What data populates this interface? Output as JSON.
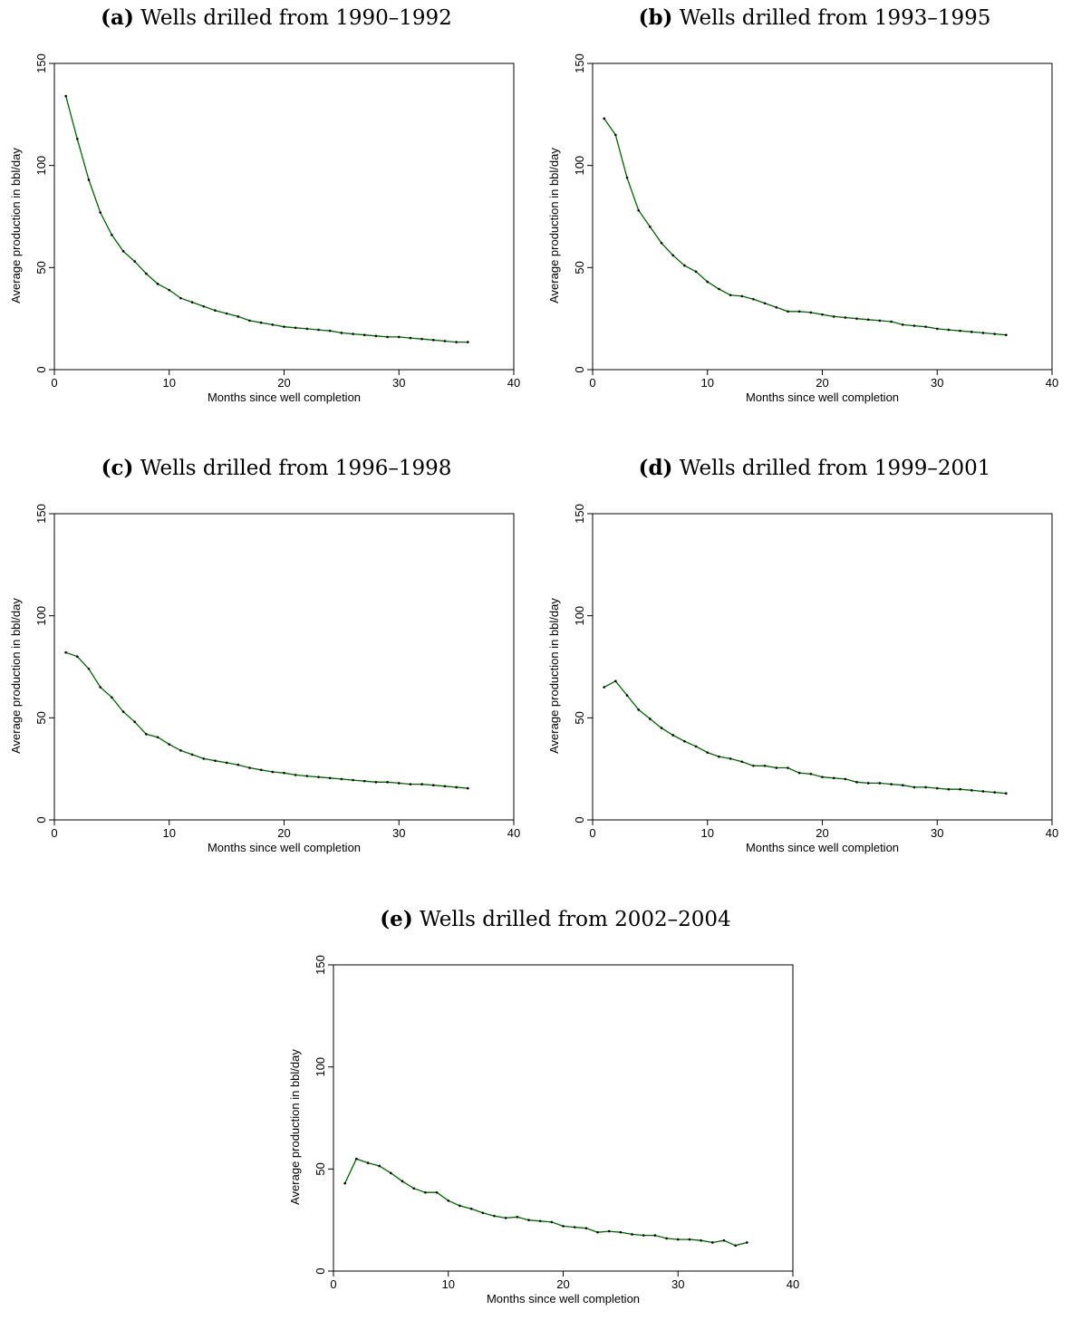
{
  "chart_data": [
    {
      "type": "line",
      "panel_label": "(a)",
      "title": "Wells drilled from 1990–1992",
      "xlabel": "Months since well completion",
      "ylabel": "Average production in bbl/day",
      "xlim": [
        0,
        40
      ],
      "ylim": [
        0,
        150
      ],
      "xticks": [
        0,
        10,
        20,
        30,
        40
      ],
      "yticks": [
        0,
        50,
        100,
        150
      ],
      "line_color": "#006400",
      "x": [
        1,
        2,
        3,
        4,
        5,
        6,
        7,
        8,
        9,
        10,
        11,
        12,
        13,
        14,
        15,
        16,
        17,
        18,
        19,
        20,
        21,
        22,
        23,
        24,
        25,
        26,
        27,
        28,
        29,
        30,
        31,
        32,
        33,
        34,
        35,
        36
      ],
      "y": [
        134,
        113,
        93,
        77,
        66,
        58,
        53,
        47,
        42,
        39,
        35,
        33,
        31,
        29,
        27.5,
        26,
        24,
        23,
        22,
        21,
        20.5,
        20,
        19.5,
        19,
        18,
        17.5,
        17,
        16.5,
        16,
        16,
        15.5,
        15,
        14.5,
        14,
        13.5,
        13.5
      ]
    },
    {
      "type": "line",
      "panel_label": "(b)",
      "title": "Wells drilled from 1993–1995",
      "xlabel": "Months since well completion",
      "ylabel": "Average production in bbl/day",
      "xlim": [
        0,
        40
      ],
      "ylim": [
        0,
        150
      ],
      "xticks": [
        0,
        10,
        20,
        30,
        40
      ],
      "yticks": [
        0,
        50,
        100,
        150
      ],
      "line_color": "#006400",
      "x": [
        1,
        2,
        3,
        4,
        5,
        6,
        7,
        8,
        9,
        10,
        11,
        12,
        13,
        14,
        15,
        16,
        17,
        18,
        19,
        20,
        21,
        22,
        23,
        24,
        25,
        26,
        27,
        28,
        29,
        30,
        31,
        32,
        33,
        34,
        35,
        36
      ],
      "y": [
        123,
        115,
        94,
        78,
        70,
        62,
        56,
        51,
        48,
        43,
        39.5,
        36.5,
        36,
        34.5,
        32.5,
        30.5,
        28.5,
        28.5,
        28,
        27,
        26,
        25.5,
        25,
        24.5,
        24,
        23.5,
        22,
        21.5,
        21,
        20,
        19.5,
        19,
        18.5,
        18,
        17.5,
        17
      ]
    },
    {
      "type": "line",
      "panel_label": "(c)",
      "title": "Wells drilled from 1996–1998",
      "xlabel": "Months since well completion",
      "ylabel": "Average production in bbl/day",
      "xlim": [
        0,
        40
      ],
      "ylim": [
        0,
        150
      ],
      "xticks": [
        0,
        10,
        20,
        30,
        40
      ],
      "yticks": [
        0,
        50,
        100,
        150
      ],
      "line_color": "#006400",
      "x": [
        1,
        2,
        3,
        4,
        5,
        6,
        7,
        8,
        9,
        10,
        11,
        12,
        13,
        14,
        15,
        16,
        17,
        18,
        19,
        20,
        21,
        22,
        23,
        24,
        25,
        26,
        27,
        28,
        29,
        30,
        31,
        32,
        33,
        34,
        35,
        36
      ],
      "y": [
        82,
        80,
        74,
        65,
        60,
        53,
        48,
        42,
        40.5,
        37,
        34,
        32,
        30,
        29,
        28,
        27,
        25.5,
        24.5,
        23.5,
        23,
        22,
        21.5,
        21,
        20.5,
        20,
        19.5,
        19,
        18.5,
        18.5,
        18,
        17.5,
        17.5,
        17,
        16.5,
        16,
        15.5
      ]
    },
    {
      "type": "line",
      "panel_label": "(d)",
      "title": "Wells drilled from 1999–2001",
      "xlabel": "Months since well completion",
      "ylabel": "Average production in bbl/day",
      "xlim": [
        0,
        40
      ],
      "ylim": [
        0,
        150
      ],
      "xticks": [
        0,
        10,
        20,
        30,
        40
      ],
      "yticks": [
        0,
        50,
        100,
        150
      ],
      "line_color": "#006400",
      "x": [
        1,
        2,
        3,
        4,
        5,
        6,
        7,
        8,
        9,
        10,
        11,
        12,
        13,
        14,
        15,
        16,
        17,
        18,
        19,
        20,
        21,
        22,
        23,
        24,
        25,
        26,
        27,
        28,
        29,
        30,
        31,
        32,
        33,
        34,
        35,
        36
      ],
      "y": [
        65,
        68,
        61,
        54,
        49.5,
        45,
        41.5,
        38.5,
        36,
        33,
        31,
        30,
        28.5,
        26.5,
        26.5,
        25.5,
        25.5,
        23,
        22.5,
        21,
        20.5,
        20,
        18.5,
        18,
        18,
        17.5,
        17,
        16,
        16,
        15.5,
        15,
        15,
        14.5,
        14,
        13.5,
        13
      ]
    },
    {
      "type": "line",
      "panel_label": "(e)",
      "title": "Wells drilled from 2002–2004",
      "xlabel": "Months since well completion",
      "ylabel": "Average production in bbl/day",
      "xlim": [
        0,
        40
      ],
      "ylim": [
        0,
        150
      ],
      "xticks": [
        0,
        10,
        20,
        30,
        40
      ],
      "yticks": [
        0,
        50,
        100,
        150
      ],
      "line_color": "#006400",
      "x": [
        1,
        2,
        3,
        4,
        5,
        6,
        7,
        8,
        9,
        10,
        11,
        12,
        13,
        14,
        15,
        16,
        17,
        18,
        19,
        20,
        21,
        22,
        23,
        24,
        25,
        26,
        27,
        28,
        29,
        30,
        31,
        32,
        33,
        34,
        35,
        36
      ],
      "y": [
        43,
        55,
        53,
        51.5,
        48,
        44,
        40.5,
        38.5,
        38.5,
        34.5,
        32,
        30.5,
        28.5,
        27,
        26,
        26.5,
        25,
        24.5,
        24,
        22,
        21.5,
        21,
        19,
        19.5,
        19,
        18,
        17.5,
        17.5,
        16,
        15.5,
        15.5,
        15,
        14,
        15,
        12.5,
        14
      ]
    }
  ]
}
